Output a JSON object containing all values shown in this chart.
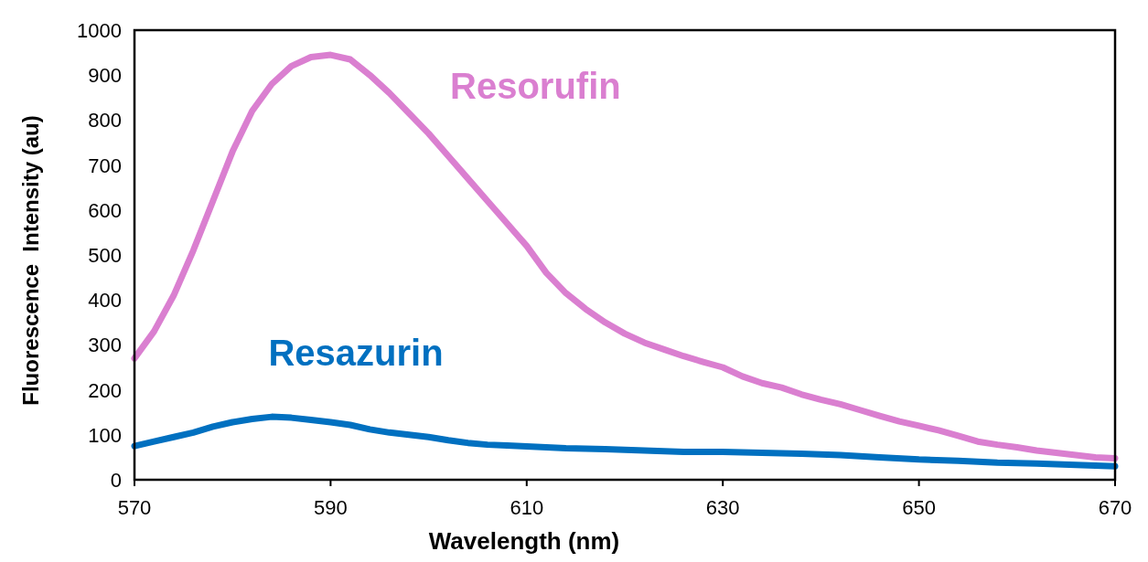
{
  "chart_data": {
    "type": "line",
    "xlabel": "Wavelength (nm)",
    "ylabel": "Fluorescence  Intensity (au)",
    "xlim": [
      570,
      670
    ],
    "xticks": [
      570,
      590,
      610,
      630,
      650,
      670
    ],
    "ylim": [
      0,
      1000
    ],
    "yticks": [
      0,
      100,
      200,
      300,
      400,
      500,
      600,
      700,
      800,
      900,
      1000
    ],
    "grid": false,
    "marker": "none",
    "line_style": "solid",
    "series": [
      {
        "name": "Resorufin",
        "color": "#da7fd0",
        "x": [
          570,
          572,
          574,
          576,
          578,
          580,
          582,
          584,
          586,
          588,
          590,
          592,
          594,
          596,
          598,
          600,
          602,
          604,
          606,
          608,
          610,
          612,
          614,
          616,
          618,
          620,
          622,
          624,
          626,
          628,
          630,
          632,
          634,
          636,
          638,
          640,
          642,
          644,
          646,
          648,
          650,
          652,
          654,
          656,
          658,
          660,
          662,
          664,
          666,
          668,
          670
        ],
        "values": [
          270,
          330,
          410,
          510,
          620,
          730,
          820,
          880,
          920,
          940,
          945,
          935,
          900,
          860,
          815,
          770,
          720,
          670,
          620,
          570,
          520,
          460,
          415,
          380,
          350,
          325,
          305,
          290,
          275,
          262,
          250,
          230,
          215,
          205,
          190,
          178,
          168,
          155,
          142,
          130,
          120,
          110,
          98,
          85,
          78,
          72,
          65,
          60,
          55,
          50,
          48
        ]
      },
      {
        "name": "Resazurin",
        "color": "#0070c0",
        "x": [
          570,
          572,
          574,
          576,
          578,
          580,
          582,
          584,
          586,
          588,
          590,
          592,
          594,
          596,
          598,
          600,
          602,
          604,
          606,
          608,
          610,
          614,
          618,
          622,
          626,
          630,
          634,
          638,
          642,
          646,
          650,
          654,
          658,
          662,
          666,
          670
        ],
        "values": [
          75,
          85,
          95,
          105,
          118,
          128,
          135,
          140,
          138,
          133,
          128,
          122,
          112,
          105,
          100,
          95,
          88,
          82,
          78,
          76,
          74,
          70,
          68,
          65,
          62,
          62,
          60,
          58,
          55,
          50,
          45,
          42,
          38,
          36,
          33,
          30
        ]
      }
    ]
  }
}
